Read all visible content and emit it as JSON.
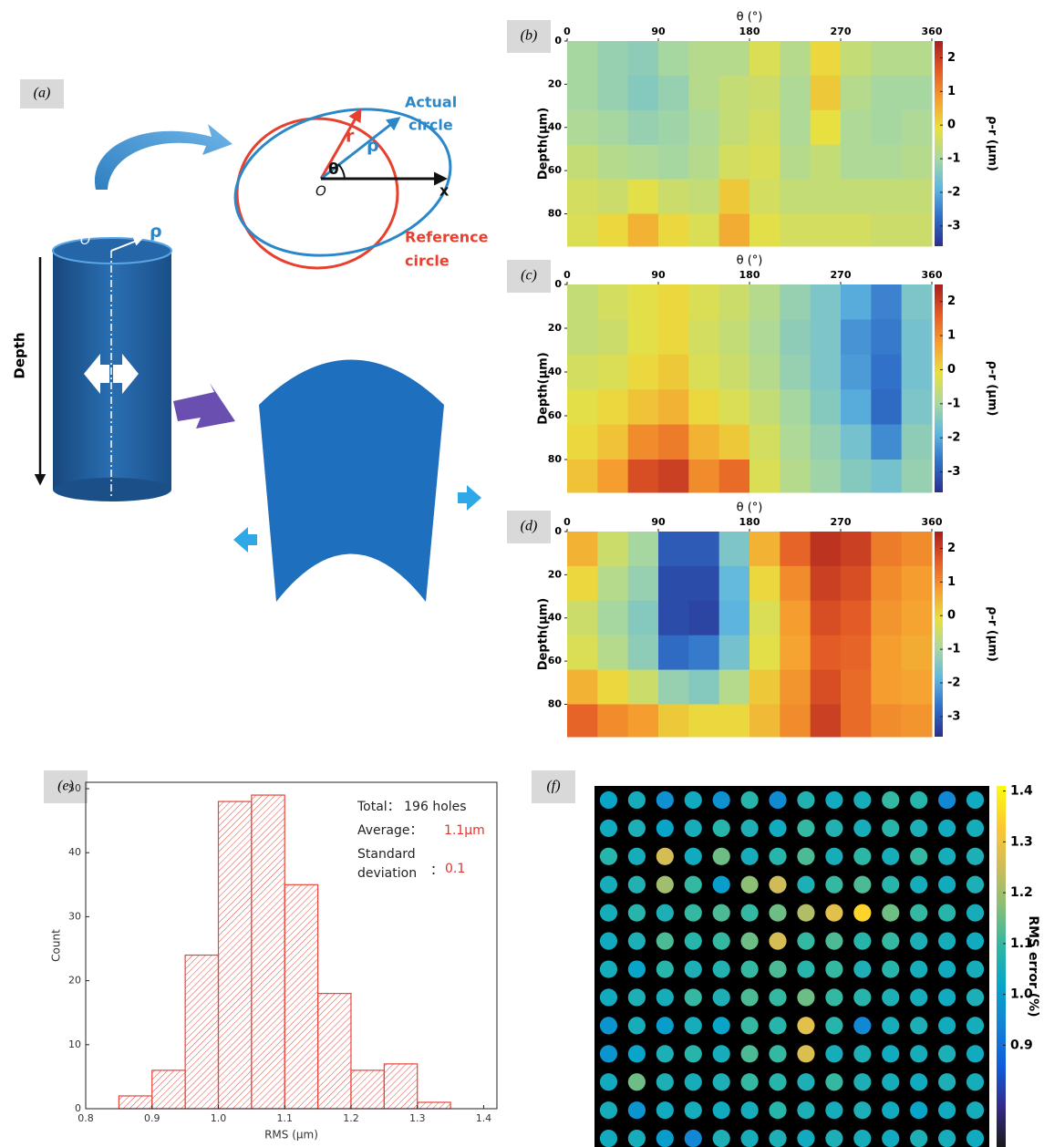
{
  "diagram": {
    "panel_label": "(a)",
    "actual_label": [
      "Actual",
      "circle"
    ],
    "reference_label": [
      "Reference",
      "circle"
    ],
    "r_label": "r",
    "rho_label": "ρ",
    "theta_label": "θ",
    "origin_label": "O",
    "x_label": "x",
    "cylinder_rho_label": "ρ",
    "cylinder_origin_label": "O",
    "depth_label": "Depth"
  },
  "chart_data": [
    {
      "type": "heatmap",
      "panel_label": "(b)",
      "x_label": "θ (°)",
      "y_label": "Depth(μm)",
      "colorbar_label": "ρ-r (μm)",
      "xlim": [
        0,
        360
      ],
      "xticks": [
        0,
        90,
        180,
        270,
        360
      ],
      "ylim": [
        0,
        95
      ],
      "yticks": [
        0,
        20,
        40,
        60,
        80
      ],
      "x": [
        15,
        45,
        75,
        105,
        135,
        165,
        195,
        225,
        255,
        285,
        315,
        345
      ],
      "y": [
        8,
        24,
        40,
        56,
        72,
        88
      ],
      "z": [
        [
          -1,
          -1.2,
          -1.3,
          -1,
          -0.8,
          -0.8,
          -0.3,
          -0.8,
          0,
          -0.6,
          -0.8,
          -0.8
        ],
        [
          -1,
          -1.2,
          -1.4,
          -1.2,
          -0.8,
          -0.6,
          -0.5,
          -0.9,
          0.2,
          -0.8,
          -1,
          -1
        ],
        [
          -0.9,
          -1,
          -1.2,
          -1.1,
          -0.9,
          -0.6,
          -0.4,
          -0.9,
          -0.1,
          -0.9,
          -1,
          -0.9
        ],
        [
          -0.6,
          -0.8,
          -0.9,
          -1,
          -0.8,
          -0.4,
          -0.3,
          -0.8,
          -0.6,
          -0.9,
          -0.9,
          -0.8
        ],
        [
          -0.4,
          -0.5,
          -0.2,
          -0.5,
          -0.6,
          0.2,
          -0.4,
          -0.6,
          -0.6,
          -0.6,
          -0.6,
          -0.6
        ],
        [
          -0.3,
          0,
          0.5,
          0,
          -0.3,
          0.6,
          -0.2,
          -0.4,
          -0.4,
          -0.4,
          -0.5,
          -0.5
        ]
      ],
      "clim": [
        -3.6,
        2.5
      ],
      "cticks": [
        2,
        1,
        0,
        -1,
        -2,
        -3
      ],
      "colormap": [
        "#2a2f8f",
        "#2f6fc8",
        "#5fb8e0",
        "#a8d8a0",
        "#e8e040",
        "#f6a030",
        "#e35a25",
        "#a81e1e"
      ]
    },
    {
      "type": "heatmap",
      "panel_label": "(c)",
      "x_label": "θ (°)",
      "y_label": "Depth(μm)",
      "colorbar_label": "ρ-r (μm)",
      "xlim": [
        0,
        360
      ],
      "xticks": [
        0,
        90,
        180,
        270,
        360
      ],
      "ylim": [
        0,
        95
      ],
      "yticks": [
        0,
        20,
        40,
        60,
        80
      ],
      "x": [
        15,
        45,
        75,
        105,
        135,
        165,
        195,
        225,
        255,
        285,
        315,
        345
      ],
      "y": [
        8,
        24,
        40,
        56,
        72,
        88
      ],
      "z": [
        [
          -0.6,
          -0.4,
          -0.2,
          0,
          -0.3,
          -0.5,
          -0.8,
          -1.2,
          -1.5,
          -2,
          -2.5,
          -1.5
        ],
        [
          -0.6,
          -0.5,
          -0.2,
          0,
          -0.4,
          -0.6,
          -0.9,
          -1.3,
          -1.5,
          -2.3,
          -2.6,
          -1.6
        ],
        [
          -0.4,
          -0.3,
          0,
          0.2,
          -0.3,
          -0.5,
          -0.8,
          -1.2,
          -1.5,
          -2.2,
          -2.7,
          -1.6
        ],
        [
          -0.2,
          0,
          0.3,
          0.5,
          0,
          -0.3,
          -0.6,
          -1,
          -1.4,
          -2,
          -2.8,
          -1.5
        ],
        [
          0,
          0.3,
          1,
          1.2,
          0.5,
          0.2,
          -0.4,
          -0.9,
          -1.2,
          -1.6,
          -2.4,
          -1.3
        ],
        [
          0.3,
          0.8,
          1.8,
          2,
          1,
          1.4,
          -0.3,
          -0.8,
          -1.1,
          -1.4,
          -1.6,
          -1.2
        ]
      ],
      "clim": [
        -3.6,
        2.5
      ],
      "cticks": [
        2,
        1,
        0,
        -1,
        -2,
        -3
      ],
      "colormap": [
        "#2a2f8f",
        "#2f6fc8",
        "#5fb8e0",
        "#a8d8a0",
        "#e8e040",
        "#f6a030",
        "#e35a25",
        "#a81e1e"
      ]
    },
    {
      "type": "heatmap",
      "panel_label": "(d)",
      "x_label": "θ (°)",
      "y_label": "Depth(μm)",
      "colorbar_label": "ρ-r (μm)",
      "xlim": [
        0,
        360
      ],
      "xticks": [
        0,
        90,
        180,
        270,
        360
      ],
      "ylim": [
        0,
        95
      ],
      "yticks": [
        0,
        20,
        40,
        60,
        80
      ],
      "x": [
        15,
        45,
        75,
        105,
        135,
        165,
        195,
        225,
        255,
        285,
        315,
        345
      ],
      "y": [
        8,
        24,
        40,
        56,
        72,
        88
      ],
      "z": [
        [
          0.5,
          -0.5,
          -1,
          -3,
          -3,
          -1.5,
          0.5,
          1.5,
          2.2,
          2,
          1.2,
          1
        ],
        [
          0,
          -0.8,
          -1.2,
          -3.2,
          -3.2,
          -1.8,
          0,
          1,
          2,
          1.8,
          1,
          0.8
        ],
        [
          -0.5,
          -1,
          -1.4,
          -3.2,
          -3.3,
          -1.9,
          -0.3,
          0.8,
          1.8,
          1.6,
          0.9,
          0.7
        ],
        [
          -0.3,
          -0.8,
          -1.3,
          -2.8,
          -2.6,
          -1.6,
          -0.2,
          0.7,
          1.6,
          1.5,
          0.8,
          0.6
        ],
        [
          0.5,
          0,
          -0.5,
          -1.2,
          -1.4,
          -0.8,
          0.2,
          0.9,
          1.8,
          1.4,
          0.8,
          0.7
        ],
        [
          1.5,
          1,
          0.8,
          0.2,
          0,
          0,
          0.4,
          1,
          2,
          1.4,
          1,
          0.9
        ]
      ],
      "clim": [
        -3.6,
        2.5
      ],
      "cticks": [
        2,
        1,
        0,
        -1,
        -2,
        -3
      ],
      "colormap": [
        "#2a2f8f",
        "#2f6fc8",
        "#5fb8e0",
        "#a8d8a0",
        "#e8e040",
        "#f6a030",
        "#e35a25",
        "#a81e1e"
      ]
    },
    {
      "type": "histogram",
      "panel_label": "(e)",
      "x_label": "RMS (μm)",
      "y_label": "Count",
      "bins": [
        0.85,
        0.9,
        0.95,
        1.0,
        1.05,
        1.1,
        1.15,
        1.2,
        1.25,
        1.3,
        1.35
      ],
      "counts": [
        2,
        6,
        24,
        48,
        49,
        35,
        18,
        6,
        7,
        1
      ],
      "color": "#e8453c",
      "xlim": [
        0.8,
        1.42
      ],
      "xticks": [
        0.8,
        0.9,
        {
          "value": 1.0,
          "label": "1.0"
        },
        1.1,
        1.2,
        1.3,
        1.4
      ],
      "ylim": [
        0,
        51
      ],
      "yticks": [
        0,
        10,
        20,
        30,
        40,
        50
      ],
      "annotations": [
        {
          "text": "Total： 196 holes",
          "color": "#222222"
        },
        {
          "text": "Average：",
          "color": "#222222"
        },
        {
          "text": "1.1μm",
          "color": "#e8312a"
        },
        {
          "text": "Standard",
          "color": "#222222"
        },
        {
          "text": "deviation",
          "color": "#222222"
        },
        {
          "text": "：",
          "color": "#222222"
        },
        {
          "text": "0.1",
          "color": "#e8312a"
        }
      ]
    },
    {
      "type": "heatmap",
      "marker": "circle",
      "panel_label": "(f)",
      "colorbar_label": "RMS error (%)",
      "background": "#000000",
      "z": [
        [
          1.02,
          1.05,
          0.97,
          1.04,
          0.97,
          1.08,
          0.96,
          1.07,
          1.04,
          1.05,
          1.1,
          1.08,
          0.95,
          1.04
        ],
        [
          1.04,
          1.06,
          1.02,
          1.05,
          1.08,
          1.06,
          1.04,
          1.1,
          1.07,
          1.05,
          1.08,
          1.06,
          1.04,
          1.05
        ],
        [
          1.08,
          1.05,
          1.26,
          1.04,
          1.15,
          1.05,
          1.08,
          1.12,
          1.05,
          1.09,
          1.05,
          1.1,
          1.05,
          1.06
        ],
        [
          1.05,
          1.07,
          1.2,
          1.1,
          1.0,
          1.18,
          1.25,
          1.06,
          1.1,
          1.12,
          1.08,
          1.05,
          1.04,
          1.06
        ],
        [
          1.05,
          1.08,
          1.06,
          1.1,
          1.12,
          1.1,
          1.15,
          1.22,
          1.28,
          1.35,
          1.15,
          1.1,
          1.08,
          1.05
        ],
        [
          1.04,
          1.06,
          1.12,
          1.08,
          1.1,
          1.15,
          1.26,
          1.1,
          1.12,
          1.08,
          1.1,
          1.06,
          1.05,
          1.04
        ],
        [
          1.05,
          1.02,
          1.08,
          1.06,
          1.07,
          1.1,
          1.12,
          1.08,
          1.1,
          1.06,
          1.08,
          1.05,
          1.04,
          1.05
        ],
        [
          1.04,
          1.06,
          1.05,
          1.1,
          1.06,
          1.12,
          1.1,
          1.15,
          1.1,
          1.08,
          1.06,
          1.05,
          1.04,
          1.06
        ],
        [
          0.98,
          1.05,
          1.0,
          1.05,
          1.02,
          1.1,
          1.08,
          1.28,
          1.08,
          0.95,
          1.05,
          1.06,
          1.04,
          1.05
        ],
        [
          0.98,
          1.02,
          1.06,
          1.08,
          1.05,
          1.12,
          1.1,
          1.27,
          1.05,
          1.06,
          1.04,
          1.05,
          1.06,
          1.04
        ],
        [
          1.04,
          1.15,
          1.06,
          1.05,
          1.06,
          1.1,
          1.08,
          1.06,
          1.1,
          1.06,
          1.05,
          1.04,
          1.06,
          1.05
        ],
        [
          1.05,
          0.98,
          1.04,
          1.05,
          1.04,
          1.05,
          1.08,
          1.06,
          1.05,
          1.06,
          1.04,
          1.02,
          1.04,
          1.05
        ],
        [
          1.04,
          1.05,
          1.0,
          0.95,
          1.06,
          1.05,
          1.06,
          1.04,
          1.06,
          1.05,
          1.04,
          1.06,
          1.05,
          1.04
        ]
      ],
      "clim": [
        0.7,
        1.41
      ],
      "cticks": [
        {
          "value": 0.9,
          "label": "0.9"
        },
        {
          "value": 1.0,
          "label": "1.0"
        },
        1.1,
        1.2,
        1.3,
        1.4
      ],
      "colormap": [
        "#1a1a1a",
        "#352a87",
        "#0f5cdd",
        "#1481d6",
        "#06a4ca",
        "#2eb7a4",
        "#87bf77",
        "#d1bb59",
        "#fec832",
        "#f9fb0e"
      ]
    }
  ]
}
